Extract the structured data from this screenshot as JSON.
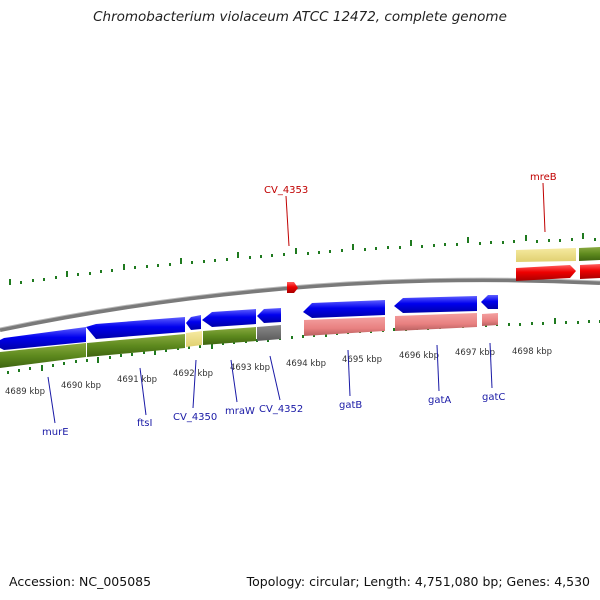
{
  "title": "Chromobacterium violaceum ATCC 12472, complete genome",
  "footer": {
    "accession": "Accession: NC_005085",
    "summary": "Topology: circular; Length: 4,751,080 bp; Genes: 4,530"
  },
  "colors": {
    "cds_forward": "#0000ee",
    "cds_reverse": "#ee0000",
    "ticks": "#1f7a1f",
    "backbone": "#8a8a8a",
    "label_blue": "#1a1aa6",
    "label_red": "#c00000"
  },
  "kbp_labels": [
    "4689 kbp",
    "4690 kbp",
    "4691 kbp",
    "4692 kbp",
    "4693 kbp",
    "4694 kbp",
    "4695 kbp",
    "4696 kbp",
    "4697 kbp",
    "4698 kbp"
  ],
  "genes": {
    "murE": "murE",
    "ftsI": "ftsI",
    "cv4350": "CV_4350",
    "mraW": "mraW",
    "cv4352": "CV_4352",
    "gatB": "gatB",
    "gatA": "gatA",
    "gatC": "gatC",
    "cv4353": "CV_4353",
    "mreB": "mreB"
  }
}
